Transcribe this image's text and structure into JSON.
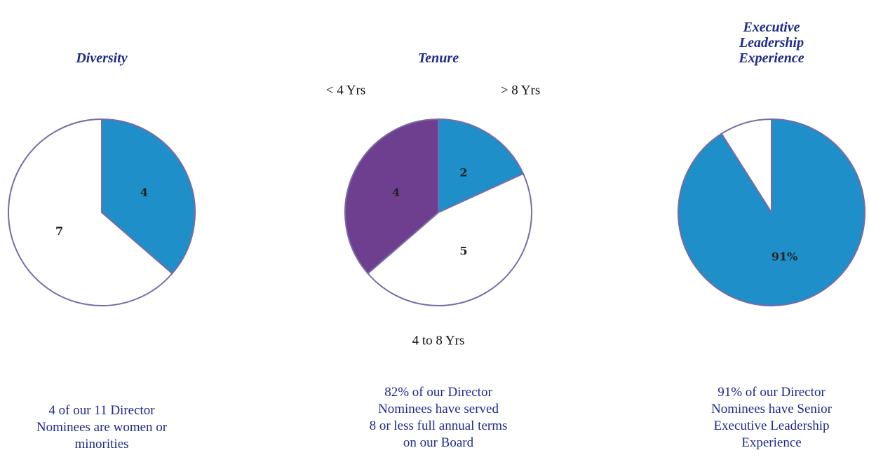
{
  "chart_data": [
    {
      "type": "pie",
      "title": "Diversity",
      "values": [
        4,
        7
      ],
      "colors": [
        "#1e8fc8",
        "#ffffff"
      ],
      "caption": [
        "4 of our 11 Director",
        "Nominees are women or",
        "minorities"
      ]
    },
    {
      "type": "pie",
      "title": "Tenure",
      "categories": [
        "> 8 Yrs",
        "4 to 8 Yrs",
        "< 4 Yrs"
      ],
      "values": [
        2,
        5,
        4
      ],
      "colors": [
        "#1e8fc8",
        "#ffffff",
        "#6f3f8f"
      ],
      "caption": [
        "82% of our Director",
        "Nominees have served",
        "8 or less full annual terms",
        "on our Board"
      ]
    },
    {
      "type": "pie",
      "title": "Executive Leadership Experience",
      "values": [
        91,
        9
      ],
      "value_labels": [
        "91%",
        null
      ],
      "colors": [
        "#1e8fc8",
        "#ffffff"
      ],
      "caption": [
        "91% of our Director",
        "Nominees have Senior",
        "Executive Leadership",
        "Experience"
      ]
    }
  ]
}
